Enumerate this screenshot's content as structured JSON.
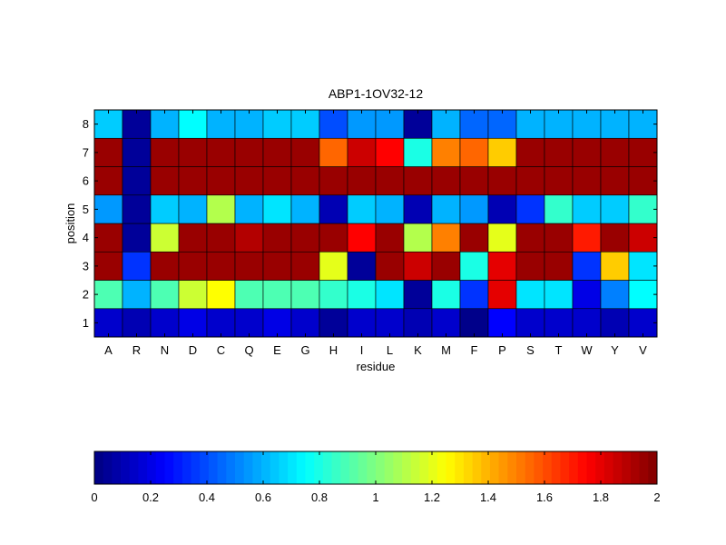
{
  "chart_data": [
    {
      "type": "heatmap",
      "title": "ABP1-1OV32-12",
      "xlabel": "residue",
      "ylabel": "position",
      "colormap": "jet",
      "clim": [
        0,
        2
      ],
      "x_categories": [
        "A",
        "R",
        "N",
        "D",
        "C",
        "Q",
        "E",
        "G",
        "H",
        "I",
        "L",
        "K",
        "M",
        "F",
        "P",
        "S",
        "T",
        "W",
        "Y",
        "V"
      ],
      "y_categories": [
        "1",
        "2",
        "3",
        "4",
        "5",
        "6",
        "7",
        "8"
      ],
      "values": [
        [
          0.15,
          0.1,
          0.15,
          0.2,
          0.15,
          0.15,
          0.2,
          0.15,
          0.05,
          0.15,
          0.15,
          0.1,
          0.15,
          0.02,
          0.25,
          0.15,
          0.15,
          0.15,
          0.1,
          0.15
        ],
        [
          0.9,
          0.6,
          0.9,
          1.15,
          1.25,
          0.9,
          0.9,
          0.9,
          0.85,
          0.8,
          0.7,
          0.05,
          0.8,
          0.35,
          1.8,
          0.7,
          0.7,
          0.2,
          0.5,
          0.75
        ],
        [
          1.95,
          0.35,
          1.95,
          1.95,
          1.95,
          1.95,
          1.95,
          1.95,
          1.2,
          0.05,
          1.95,
          1.85,
          1.95,
          0.8,
          1.8,
          1.95,
          1.95,
          0.35,
          1.35,
          0.7
        ],
        [
          1.95,
          0.05,
          1.15,
          1.95,
          1.95,
          1.9,
          1.95,
          1.95,
          1.95,
          1.75,
          1.95,
          1.1,
          1.5,
          1.95,
          1.2,
          1.95,
          1.95,
          1.7,
          1.95,
          1.85
        ],
        [
          0.55,
          0.05,
          0.65,
          0.6,
          1.1,
          0.6,
          0.7,
          0.6,
          0.1,
          0.65,
          0.6,
          0.1,
          0.6,
          0.55,
          0.1,
          0.35,
          0.85,
          0.65,
          0.65,
          0.85
        ],
        [
          1.95,
          0.05,
          1.95,
          1.95,
          1.95,
          1.95,
          1.95,
          1.95,
          1.95,
          1.95,
          1.95,
          1.95,
          1.95,
          1.95,
          1.95,
          1.95,
          1.95,
          1.95,
          1.95,
          1.95
        ],
        [
          1.95,
          0.05,
          1.95,
          1.95,
          1.95,
          1.95,
          1.95,
          1.95,
          1.55,
          1.85,
          1.75,
          0.8,
          1.5,
          1.55,
          1.35,
          1.95,
          1.95,
          1.95,
          1.95,
          1.95
        ],
        [
          0.65,
          0.05,
          0.6,
          0.75,
          0.6,
          0.6,
          0.65,
          0.65,
          0.4,
          0.55,
          0.55,
          0.05,
          0.6,
          0.45,
          0.45,
          0.6,
          0.6,
          0.6,
          0.6,
          0.6
        ]
      ]
    },
    {
      "type": "colorbar",
      "range": [
        0,
        2
      ],
      "ticks": [
        0,
        0.2,
        0.4,
        0.6,
        0.8,
        1,
        1.2,
        1.4,
        1.6,
        1.8,
        2
      ],
      "tick_labels": [
        "0",
        "0.2",
        "0.4",
        "0.6",
        "0.8",
        "1",
        "1.2",
        "1.4",
        "1.6",
        "1.8",
        "2"
      ]
    }
  ]
}
